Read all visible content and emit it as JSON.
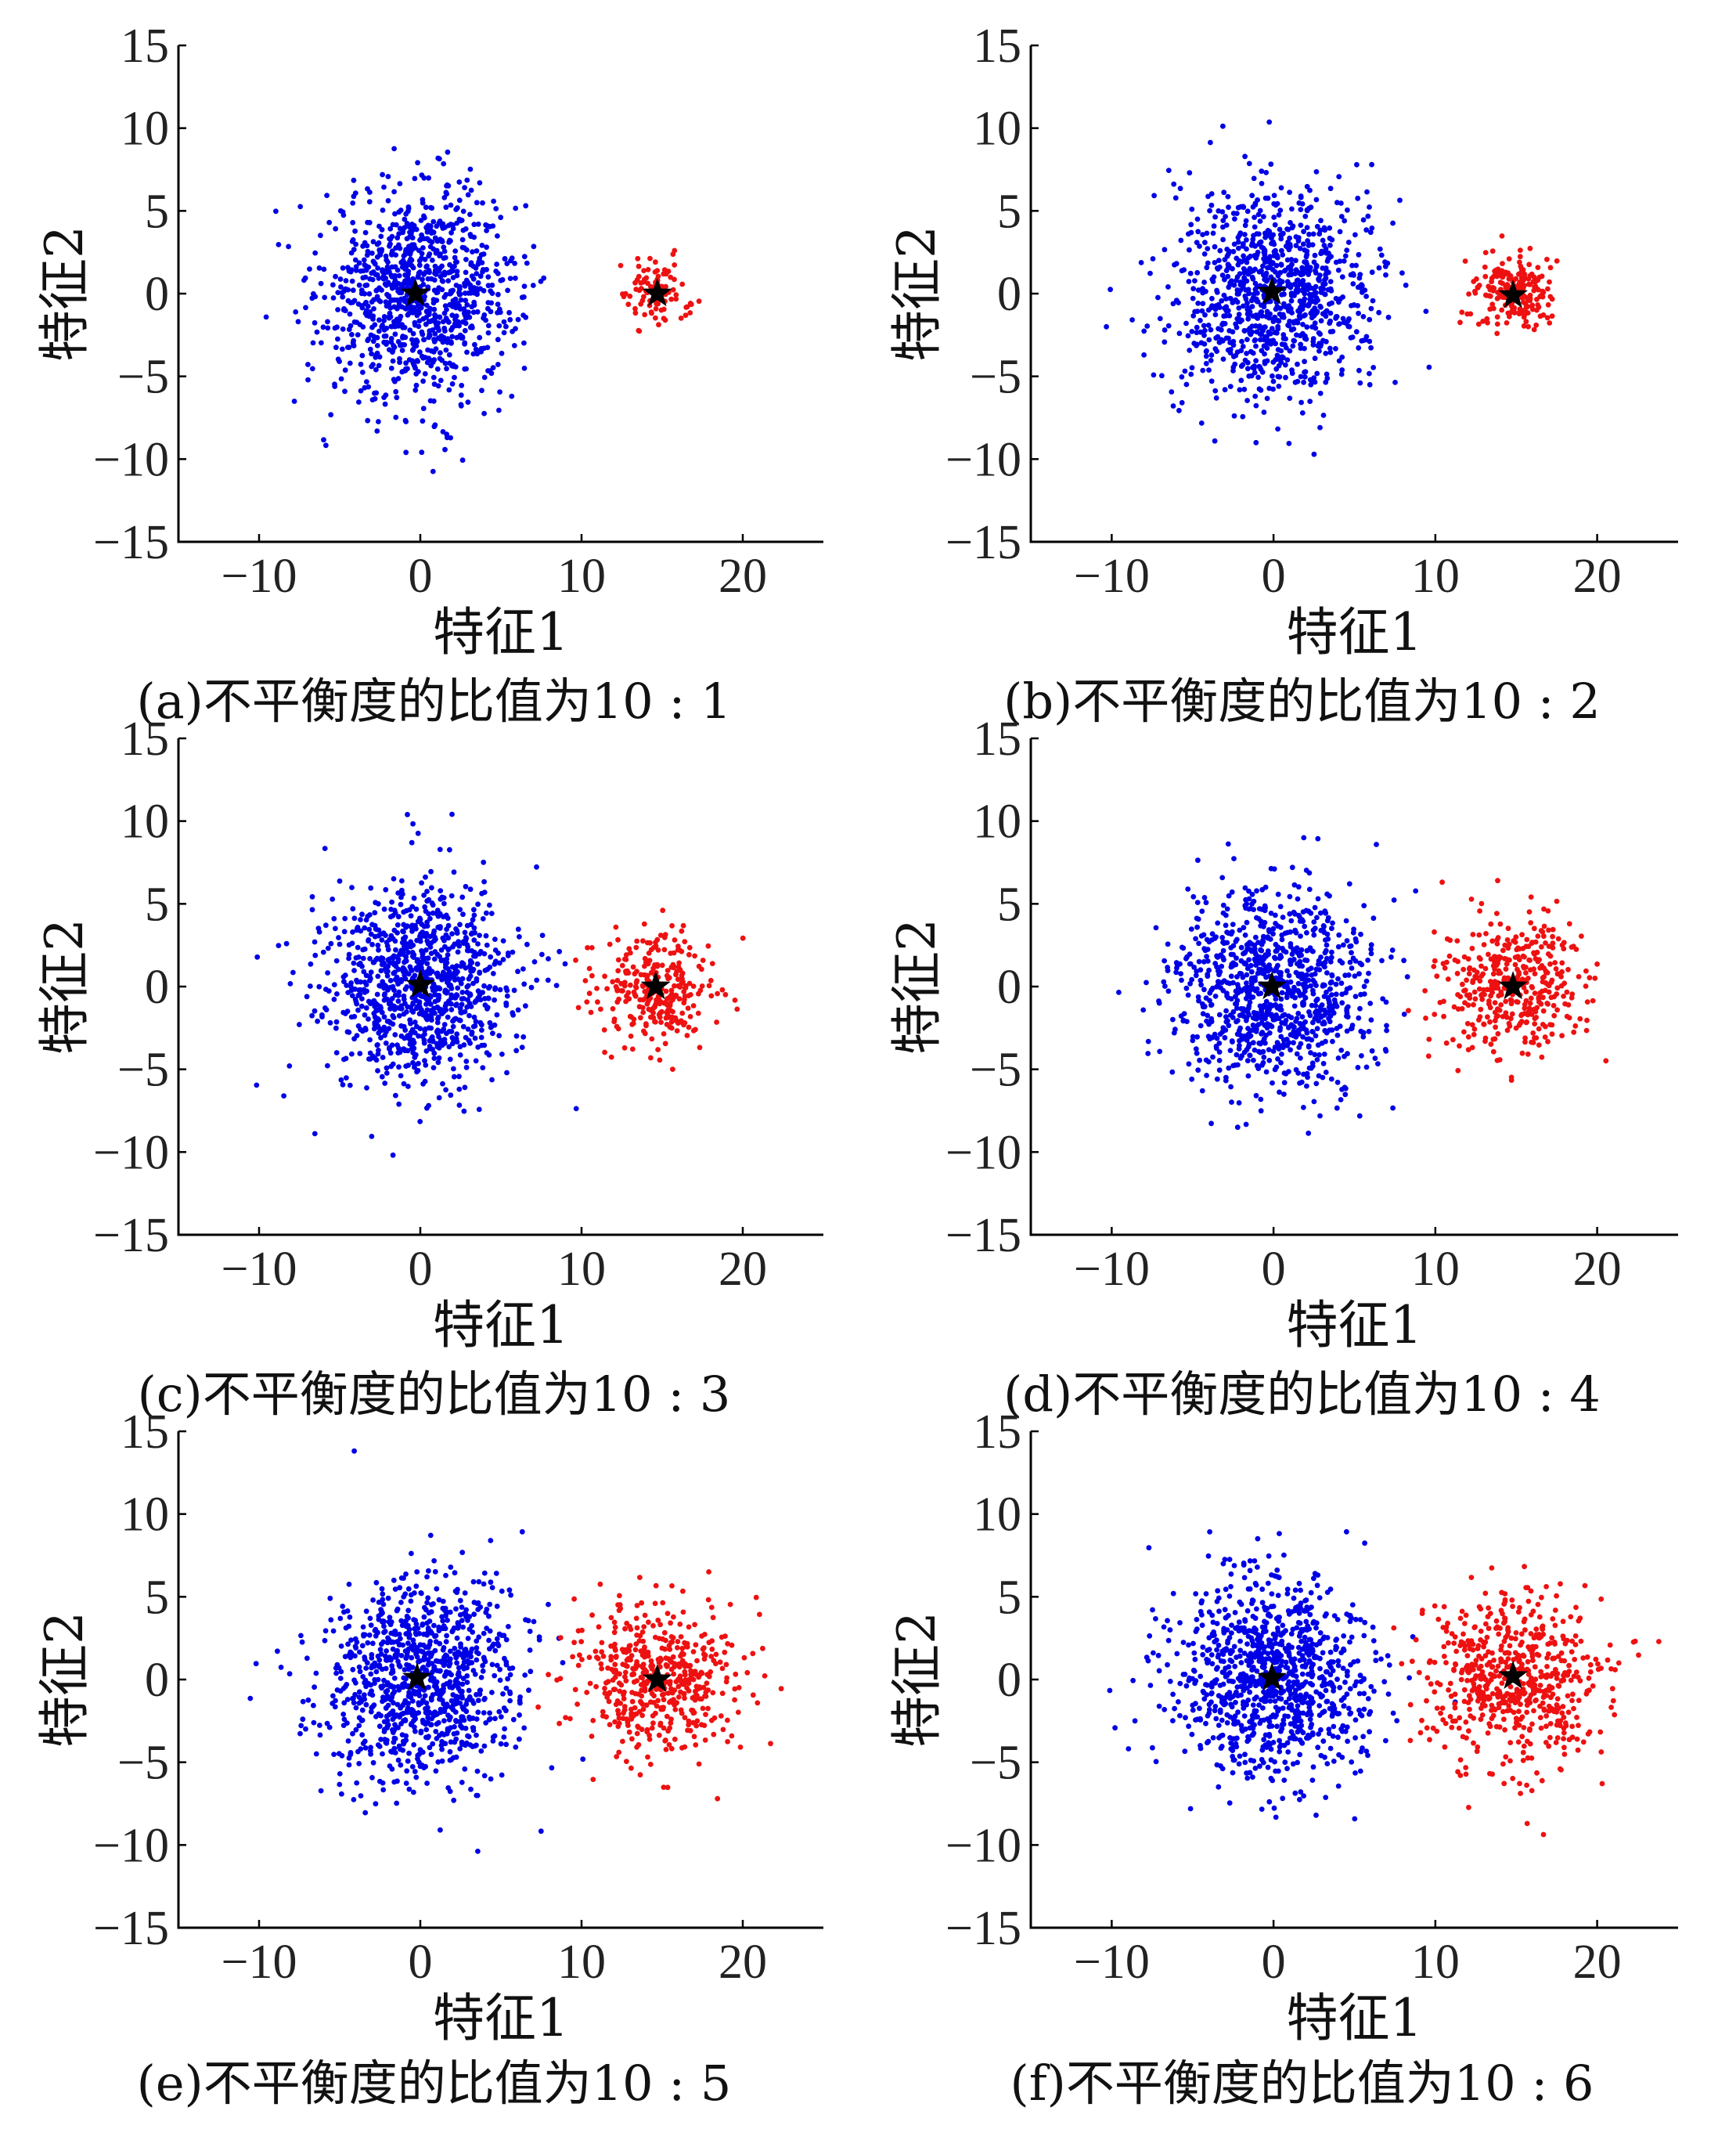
{
  "figure": {
    "colors": {
      "class1": "#0000e6",
      "class2": "#ee1111",
      "center": "#000000",
      "axis": "#000000"
    }
  },
  "chart_data": [
    {
      "type": "scatter",
      "panel": "a",
      "caption": "(a)不平衡度的比值为10 : 1",
      "xlabel": "特征1",
      "ylabel": "特征2",
      "xlim": [
        -15,
        25
      ],
      "ylim": [
        -15,
        15
      ],
      "xticks": [
        -10,
        0,
        10,
        20
      ],
      "xtick_labels": [
        "−10",
        "0",
        "10",
        "20"
      ],
      "yticks": [
        -15,
        -10,
        -5,
        0,
        5,
        10,
        15
      ],
      "ytick_labels": [
        "−15",
        "−10",
        "−5",
        "0",
        "5",
        "10",
        "15"
      ],
      "series": [
        {
          "n": 1000,
          "mean": [
            0,
            0
          ],
          "std": [
            3.0,
            3.2
          ],
          "color": "#0000e6"
        },
        {
          "n": 100,
          "mean": [
            14.7,
            0
          ],
          "std": [
            1.0,
            1.0
          ],
          "color": "#ee1111"
        }
      ],
      "centers": [
        [
          -0.3,
          0
        ],
        [
          14.7,
          0
        ]
      ]
    },
    {
      "type": "scatter",
      "panel": "b",
      "caption": "(b)不平衡度的比值为10 : 2",
      "xlabel": "特征1",
      "ylabel": "特征2",
      "xlim": [
        -15,
        25
      ],
      "ylim": [
        -15,
        15
      ],
      "xticks": [
        -10,
        0,
        10,
        20
      ],
      "xtick_labels": [
        "−10",
        "0",
        "10",
        "20"
      ],
      "yticks": [
        -15,
        -10,
        -5,
        0,
        5,
        10,
        15
      ],
      "ytick_labels": [
        "−15",
        "−10",
        "−5",
        "0",
        "5",
        "10",
        "15"
      ],
      "series": [
        {
          "n": 1000,
          "mean": [
            0,
            0
          ],
          "std": [
            3.0,
            3.2
          ],
          "color": "#0000e6"
        },
        {
          "n": 200,
          "mean": [
            14.8,
            0
          ],
          "std": [
            1.2,
            1.2
          ],
          "color": "#ee1111"
        }
      ],
      "centers": [
        [
          -0.1,
          0.1
        ],
        [
          14.8,
          -0.1
        ]
      ]
    },
    {
      "type": "scatter",
      "panel": "c",
      "caption": "(c)不平衡度的比值为10 : 3",
      "xlabel": "特征1",
      "ylabel": "特征2",
      "xlim": [
        -15,
        25
      ],
      "ylim": [
        -15,
        15
      ],
      "xticks": [
        -10,
        0,
        10,
        20
      ],
      "xtick_labels": [
        "−10",
        "0",
        "10",
        "20"
      ],
      "yticks": [
        -15,
        -10,
        -5,
        0,
        5,
        10,
        15
      ],
      "ytick_labels": [
        "−15",
        "−10",
        "−5",
        "0",
        "5",
        "10",
        "15"
      ],
      "series": [
        {
          "n": 1000,
          "mean": [
            0,
            0
          ],
          "std": [
            3.0,
            3.1
          ],
          "color": "#0000e6"
        },
        {
          "n": 300,
          "mean": [
            14.5,
            0
          ],
          "std": [
            1.8,
            1.8
          ],
          "color": "#ee1111"
        }
      ],
      "centers": [
        [
          0,
          0.1
        ],
        [
          14.6,
          0
        ]
      ]
    },
    {
      "type": "scatter",
      "panel": "d",
      "caption": "(d)不平衡度的比值为10 : 4",
      "xlabel": "特征1",
      "ylabel": "特征2",
      "xlim": [
        -15,
        25
      ],
      "ylim": [
        -15,
        15
      ],
      "xticks": [
        -10,
        0,
        10,
        20
      ],
      "xtick_labels": [
        "−10",
        "0",
        "10",
        "20"
      ],
      "yticks": [
        -15,
        -10,
        -5,
        0,
        5,
        10,
        15
      ],
      "ytick_labels": [
        "−15",
        "−10",
        "−5",
        "0",
        "5",
        "10",
        "15"
      ],
      "series": [
        {
          "n": 1000,
          "mean": [
            0,
            0
          ],
          "std": [
            3.0,
            3.1
          ],
          "color": "#0000e6"
        },
        {
          "n": 400,
          "mean": [
            14.8,
            0
          ],
          "std": [
            2.1,
            2.1
          ],
          "color": "#ee1111"
        }
      ],
      "centers": [
        [
          -0.1,
          0
        ],
        [
          14.8,
          0
        ]
      ]
    },
    {
      "type": "scatter",
      "panel": "e",
      "caption": "(e)不平衡度的比值为10 : 5",
      "xlabel": "特征1",
      "ylabel": "特征2",
      "xlim": [
        -15,
        25
      ],
      "ylim": [
        -15,
        15
      ],
      "xticks": [
        -10,
        0,
        10,
        20
      ],
      "xtick_labels": [
        "−10",
        "0",
        "10",
        "20"
      ],
      "yticks": [
        -15,
        -10,
        -5,
        0,
        5,
        10,
        15
      ],
      "ytick_labels": [
        "−15",
        "−10",
        "−5",
        "0",
        "5",
        "10",
        "15"
      ],
      "series": [
        {
          "n": 1000,
          "mean": [
            0,
            0
          ],
          "std": [
            3.0,
            3.1
          ],
          "color": "#0000e6"
        },
        {
          "n": 500,
          "mean": [
            14.8,
            0
          ],
          "std": [
            2.5,
            2.2
          ],
          "color": "#ee1111"
        }
      ],
      "centers": [
        [
          -0.2,
          0.1
        ],
        [
          14.7,
          0
        ]
      ]
    },
    {
      "type": "scatter",
      "panel": "f",
      "caption": "(f)不平衡度的比值为10 : 6",
      "xlabel": "特征1",
      "ylabel": "特征2",
      "xlim": [
        -15,
        25
      ],
      "ylim": [
        -15,
        15
      ],
      "xticks": [
        -10,
        0,
        10,
        20
      ],
      "xtick_labels": [
        "−10",
        "0",
        "10",
        "20"
      ],
      "yticks": [
        -15,
        -10,
        -5,
        0,
        5,
        10,
        15
      ],
      "ytick_labels": [
        "−15",
        "−10",
        "−5",
        "0",
        "5",
        "10",
        "15"
      ],
      "series": [
        {
          "n": 1000,
          "mean": [
            0,
            0
          ],
          "std": [
            3.0,
            3.1
          ],
          "color": "#0000e6"
        },
        {
          "n": 600,
          "mean": [
            14.8,
            0
          ],
          "std": [
            2.8,
            2.6
          ],
          "color": "#ee1111"
        }
      ],
      "centers": [
        [
          -0.1,
          0.1
        ],
        [
          14.8,
          0.2
        ]
      ]
    }
  ]
}
